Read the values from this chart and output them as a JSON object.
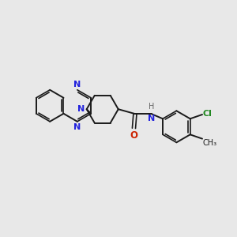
{
  "background_color": "#e8e8e8",
  "bond_color": "#1a1a1a",
  "N_color": "#2222dd",
  "O_color": "#cc2200",
  "Cl_color": "#228822",
  "H_color": "#666666",
  "figsize": [
    3.0,
    3.0
  ],
  "dpi": 100,
  "xlim": [
    0,
    10
  ],
  "ylim": [
    0,
    10
  ]
}
